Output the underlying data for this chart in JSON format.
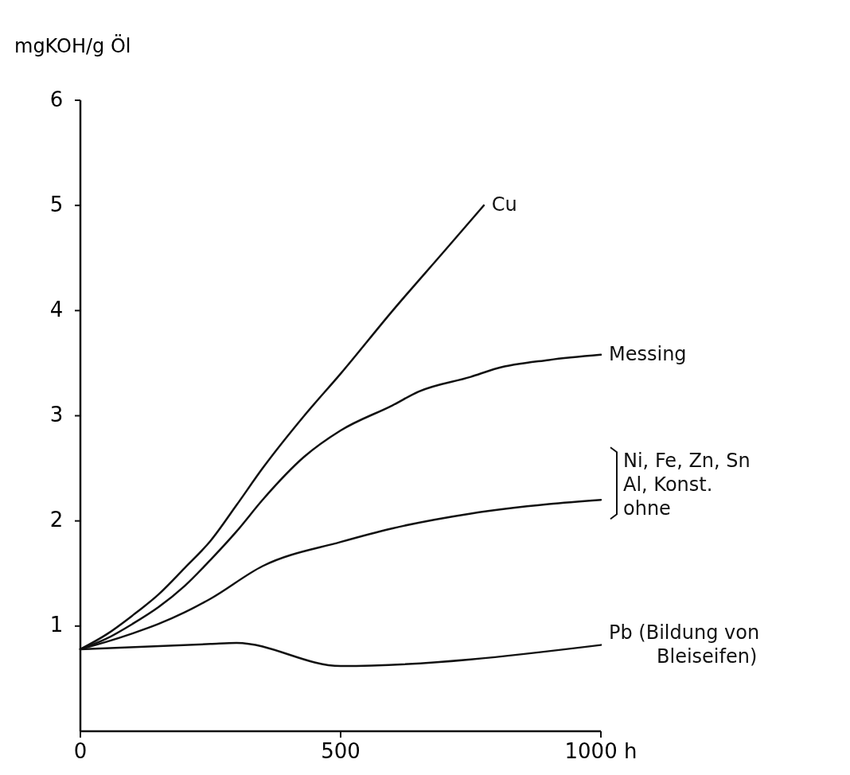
{
  "chart_data": {
    "type": "line",
    "ylabel": "mgKOH/g Öl",
    "xlim": [
      0,
      1000
    ],
    "ylim": [
      0,
      6
    ],
    "xticks": [
      0,
      500,
      {
        "value": 1000,
        "label": "1000 h"
      }
    ],
    "yticks": [
      1,
      2,
      3,
      4,
      5,
      6
    ],
    "grid": false,
    "marker": "none",
    "line_style": "solid",
    "series": [
      {
        "name": "Cu",
        "color": "#111111",
        "x": [
          0,
          50,
          100,
          150,
          200,
          250,
          300,
          350,
          430,
          500,
          600,
          700,
          775
        ],
        "values": [
          0.78,
          0.92,
          1.1,
          1.3,
          1.55,
          1.81,
          2.15,
          2.5,
          3.0,
          3.4,
          4.0,
          4.57,
          5.0
        ]
      },
      {
        "name": "Messing",
        "color": "#111111",
        "x": [
          0,
          50,
          100,
          150,
          200,
          250,
          300,
          350,
          430,
          500,
          600,
          650,
          750,
          800,
          900,
          1000
        ],
        "values": [
          0.78,
          0.88,
          1.02,
          1.18,
          1.38,
          1.63,
          1.9,
          2.2,
          2.61,
          2.86,
          3.1,
          3.23,
          3.37,
          3.45,
          3.53,
          3.58
        ]
      },
      {
        "name": "Ni, Fe, Zn, Sn\nAl, Konst.\nohne",
        "color": "#111111",
        "x": [
          0,
          50,
          100,
          150,
          200,
          250,
          350,
          500,
          600,
          750,
          900,
          1000
        ],
        "values": [
          0.78,
          0.85,
          0.93,
          1.02,
          1.13,
          1.26,
          1.57,
          1.8,
          1.93,
          2.07,
          2.16,
          2.2
        ]
      },
      {
        "name": "Pb (Bildung von\nBleiseifen)",
        "color": "#111111",
        "x": [
          0,
          250,
          300,
          500,
          1000
        ],
        "values": [
          0.78,
          0.83,
          0.84,
          0.62,
          0.82
        ]
      }
    ]
  }
}
